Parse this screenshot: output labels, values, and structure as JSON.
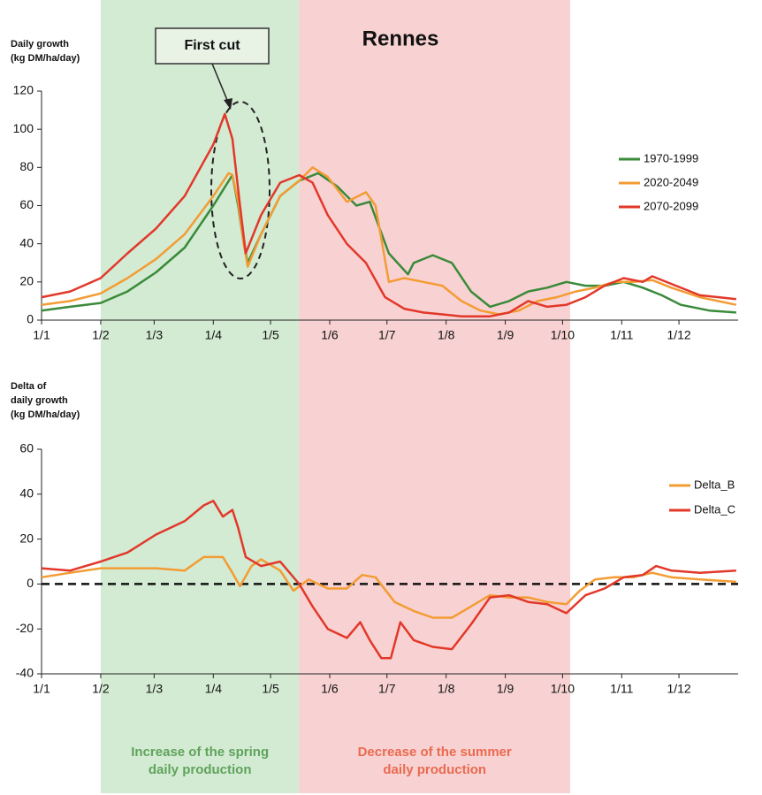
{
  "chart_data": [
    {
      "type": "line",
      "title": "Rennes",
      "annotation": "First cut",
      "y_label": [
        "Daily growth",
        "(kg DM/ha/day)"
      ],
      "xlim": [
        0,
        365
      ],
      "xticks": [
        {
          "value": 0,
          "label": "1/1"
        },
        {
          "value": 31,
          "label": "1/2"
        },
        {
          "value": 59,
          "label": "1/3"
        },
        {
          "value": 90,
          "label": "1/4"
        },
        {
          "value": 120,
          "label": "1/5"
        },
        {
          "value": 151,
          "label": "1/6"
        },
        {
          "value": 181,
          "label": "1/7"
        },
        {
          "value": 212,
          "label": "1/8"
        },
        {
          "value": 243,
          "label": "1/9"
        },
        {
          "value": 273,
          "label": "1/10"
        },
        {
          "value": 304,
          "label": "1/11"
        },
        {
          "value": 334,
          "label": "1/12"
        }
      ],
      "ylim": [
        0,
        120
      ],
      "yticks": [
        0,
        20,
        40,
        60,
        80,
        100,
        120
      ],
      "legend": "right",
      "series": [
        {
          "name": "1970-1999",
          "color": "#3a8a3a",
          "x": [
            0,
            15,
            31,
            45,
            60,
            75,
            90,
            95,
            100,
            103,
            106,
            108,
            115,
            125,
            135,
            145,
            155,
            165,
            172,
            182,
            192,
            195,
            205,
            215,
            225,
            235,
            245,
            255,
            265,
            275,
            285,
            295,
            305,
            315,
            325,
            335,
            350,
            364
          ],
          "values": [
            5,
            7,
            9,
            15,
            25,
            38,
            60,
            68,
            76,
            60,
            40,
            30,
            45,
            65,
            73,
            77,
            70,
            60,
            62,
            35,
            24,
            30,
            34,
            30,
            15,
            7,
            10,
            15,
            17,
            20,
            18,
            18,
            20,
            17,
            13,
            8,
            5,
            4
          ]
        },
        {
          "name": "2020-2049",
          "color": "#f39c34",
          "x": [
            0,
            15,
            31,
            45,
            60,
            75,
            90,
            98,
            100,
            103,
            106,
            108,
            115,
            125,
            135,
            142,
            150,
            160,
            170,
            175,
            182,
            190,
            200,
            210,
            220,
            230,
            240,
            250,
            260,
            270,
            280,
            290,
            300,
            310,
            320,
            330,
            345,
            364
          ],
          "values": [
            8,
            10,
            14,
            22,
            32,
            45,
            65,
            77,
            76,
            62,
            40,
            28,
            45,
            65,
            73,
            80,
            75,
            62,
            67,
            60,
            20,
            22,
            20,
            18,
            10,
            5,
            3,
            5,
            10,
            12,
            15,
            17,
            20,
            20,
            21,
            17,
            12,
            8
          ]
        },
        {
          "name": "2070-2099",
          "color": "#e2382a",
          "x": [
            0,
            15,
            31,
            45,
            60,
            75,
            90,
            96,
            100,
            104,
            107,
            109,
            115,
            125,
            135,
            142,
            150,
            160,
            170,
            180,
            190,
            200,
            210,
            220,
            235,
            245,
            255,
            265,
            275,
            285,
            295,
            305,
            315,
            320,
            330,
            345,
            364
          ],
          "values": [
            12,
            15,
            22,
            35,
            48,
            65,
            92,
            108,
            95,
            60,
            35,
            40,
            55,
            72,
            76,
            72,
            55,
            40,
            30,
            12,
            6,
            4,
            3,
            2,
            2,
            4,
            10,
            7,
            8,
            12,
            18,
            22,
            20,
            23,
            19,
            13,
            11
          ]
        }
      ]
    },
    {
      "type": "line",
      "y_label": [
        "Delta of",
        "daily growth",
        "(kg DM/ha/day)"
      ],
      "xlim": [
        0,
        365
      ],
      "xticks": [
        {
          "value": 0,
          "label": "1/1"
        },
        {
          "value": 31,
          "label": "1/2"
        },
        {
          "value": 59,
          "label": "1/3"
        },
        {
          "value": 90,
          "label": "1/4"
        },
        {
          "value": 120,
          "label": "1/5"
        },
        {
          "value": 151,
          "label": "1/6"
        },
        {
          "value": 181,
          "label": "1/7"
        },
        {
          "value": 212,
          "label": "1/8"
        },
        {
          "value": 243,
          "label": "1/9"
        },
        {
          "value": 273,
          "label": "1/10"
        },
        {
          "value": 304,
          "label": "1/11"
        },
        {
          "value": 334,
          "label": "1/12"
        }
      ],
      "ylim": [
        -40,
        60
      ],
      "yticks": [
        -40,
        -20,
        0,
        20,
        40,
        60
      ],
      "reference_line": 0,
      "legend": "right",
      "series": [
        {
          "name": "Delta_B",
          "color": "#f39c34",
          "x": [
            0,
            15,
            31,
            45,
            60,
            75,
            85,
            95,
            100,
            104,
            110,
            115,
            125,
            132,
            140,
            150,
            160,
            168,
            175,
            185,
            195,
            205,
            215,
            225,
            235,
            245,
            255,
            265,
            275,
            282,
            290,
            300,
            310,
            320,
            330,
            345,
            364
          ],
          "values": [
            3,
            5,
            7,
            7,
            7,
            6,
            12,
            12,
            5,
            -1,
            8,
            11,
            6,
            -3,
            2,
            -2,
            -2,
            4,
            3,
            -8,
            -12,
            -15,
            -15,
            -10,
            -5,
            -6,
            -6,
            -8,
            -9,
            -3,
            2,
            3,
            3,
            5,
            3,
            2,
            1
          ]
        },
        {
          "name": "Delta_C",
          "color": "#e2382a",
          "x": [
            0,
            15,
            31,
            45,
            60,
            75,
            85,
            90,
            95,
            100,
            103,
            107,
            115,
            125,
            135,
            142,
            150,
            160,
            167,
            172,
            178,
            183,
            188,
            195,
            205,
            215,
            225,
            235,
            245,
            255,
            265,
            275,
            285,
            295,
            305,
            315,
            322,
            330,
            345,
            364
          ],
          "values": [
            7,
            6,
            10,
            14,
            22,
            28,
            35,
            37,
            30,
            33,
            25,
            12,
            8,
            10,
            0,
            -10,
            -20,
            -24,
            -17,
            -25,
            -33,
            -33,
            -17,
            -25,
            -28,
            -29,
            -18,
            -6,
            -5,
            -8,
            -9,
            -13,
            -5,
            -2,
            3,
            4,
            8,
            6,
            5,
            6
          ]
        }
      ]
    }
  ],
  "shaded_regions": [
    {
      "from": 31,
      "to": 135,
      "color": "#d4ebd3",
      "label": [
        "Increase of the spring",
        "daily production"
      ],
      "label_color": "#5fa35c"
    },
    {
      "from": 135,
      "to": 277,
      "color": "#f8d2d2",
      "label": [
        "Decrease of the summer",
        "daily production"
      ],
      "label_color": "#ea6a50"
    }
  ]
}
